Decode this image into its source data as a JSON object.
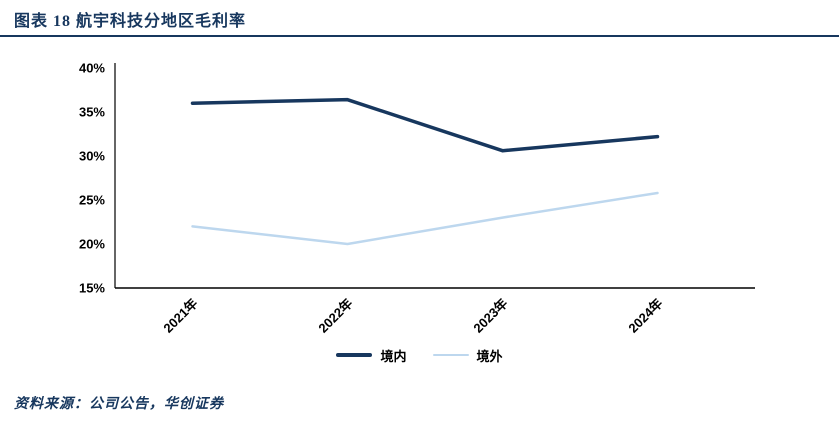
{
  "header": {
    "title": "图表 18  航宇科技分地区毛利率",
    "accent_color": "#17375E"
  },
  "chart_data": {
    "type": "line",
    "categories": [
      "2021年",
      "2022年",
      "2023年",
      "2024年"
    ],
    "series": [
      {
        "name": "境内",
        "color": "#17375E",
        "stroke_width": 3.5,
        "values": [
          36.0,
          36.4,
          30.6,
          32.2
        ]
      },
      {
        "name": "境外",
        "color": "#BDD7EE",
        "stroke_width": 2.5,
        "values": [
          22.0,
          20.0,
          23.0,
          25.8
        ]
      }
    ],
    "ylim": [
      15,
      40
    ],
    "ytick_step": 5,
    "ytick_labels": [
      "15%",
      "20%",
      "25%",
      "30%",
      "35%",
      "40%"
    ],
    "grid": false,
    "legend_position": "bottom",
    "axis_color": "#000000"
  },
  "footer": {
    "source_text": "资料来源：公司公告，华创证券"
  }
}
